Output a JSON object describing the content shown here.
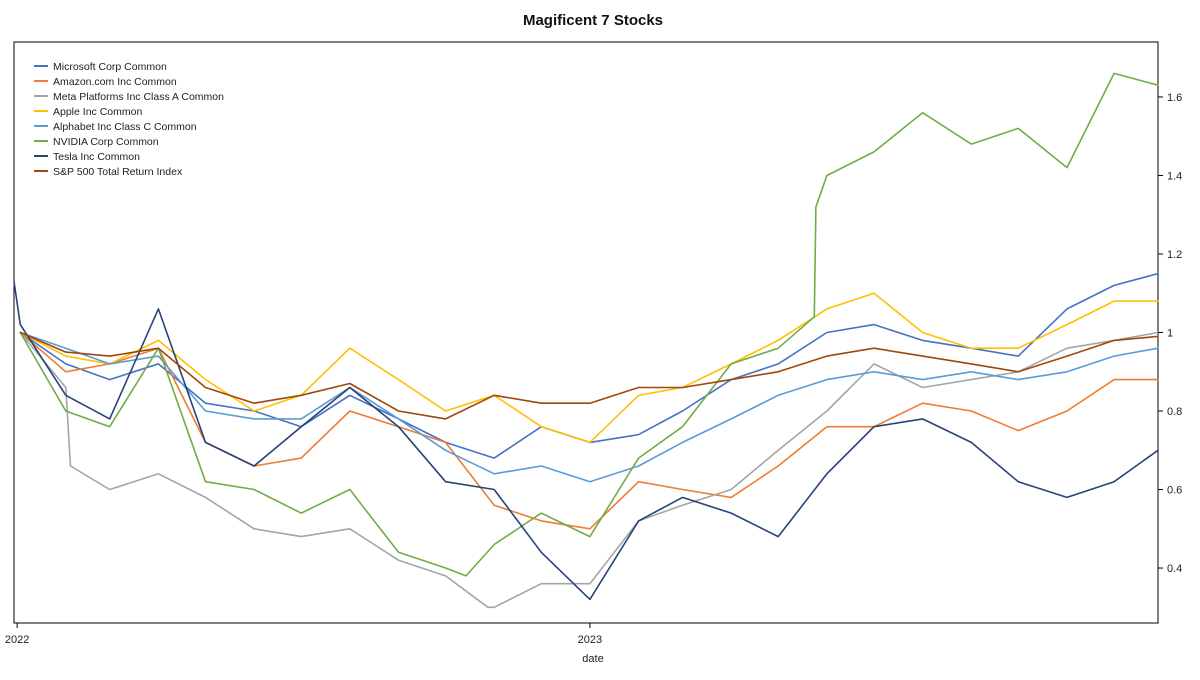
{
  "chart_data": {
    "type": "line",
    "title": "Magificent 7 Stocks",
    "xlabel": "date",
    "ylabel": "",
    "x_range": [
      "2021-12-30",
      "2023-12-29"
    ],
    "x_ticks": [
      {
        "date": "2022-01-01",
        "label": "2022"
      },
      {
        "date": "2023-01-01",
        "label": "2023"
      }
    ],
    "y_axis_side": "right",
    "ylim": [
      0.26,
      1.74
    ],
    "y_ticks": [
      0.4,
      0.6,
      0.8,
      1.0,
      1.2,
      1.4,
      1.6
    ],
    "y_tick_labels": [
      "0.4",
      "0.6",
      "0.8",
      "1",
      "1.2",
      "1.4",
      "1.6"
    ],
    "grid": false,
    "legend_position": "top-left",
    "series": [
      {
        "name": "Microsoft Corp Common",
        "color": "#4472c4",
        "points": [
          [
            "2022-01-03",
            1.0
          ],
          [
            "2022-02-01",
            0.92
          ],
          [
            "2022-03-01",
            0.88
          ],
          [
            "2022-04-01",
            0.92
          ],
          [
            "2022-05-01",
            0.82
          ],
          [
            "2022-06-01",
            0.8
          ],
          [
            "2022-07-01",
            0.76
          ],
          [
            "2022-08-01",
            0.84
          ],
          [
            "2022-09-01",
            0.78
          ],
          [
            "2022-10-01",
            0.72
          ],
          [
            "2022-11-01",
            0.68
          ],
          [
            "2022-12-01",
            0.76
          ],
          [
            "2023-01-01",
            0.72
          ],
          [
            "2023-02-01",
            0.74
          ],
          [
            "2023-03-01",
            0.8
          ],
          [
            "2023-04-01",
            0.88
          ],
          [
            "2023-05-01",
            0.92
          ],
          [
            "2023-06-01",
            1.0
          ],
          [
            "2023-07-01",
            1.02
          ],
          [
            "2023-08-01",
            0.98
          ],
          [
            "2023-09-01",
            0.96
          ],
          [
            "2023-10-01",
            0.94
          ],
          [
            "2023-11-01",
            1.06
          ],
          [
            "2023-12-01",
            1.12
          ],
          [
            "2023-12-29",
            1.15
          ]
        ]
      },
      {
        "name": "Amazon.com Inc Common",
        "color": "#ed7d31",
        "points": [
          [
            "2022-01-03",
            1.0
          ],
          [
            "2022-02-01",
            0.9
          ],
          [
            "2022-03-01",
            0.92
          ],
          [
            "2022-04-01",
            0.96
          ],
          [
            "2022-05-01",
            0.72
          ],
          [
            "2022-06-01",
            0.66
          ],
          [
            "2022-07-01",
            0.68
          ],
          [
            "2022-08-01",
            0.8
          ],
          [
            "2022-09-01",
            0.76
          ],
          [
            "2022-10-01",
            0.72
          ],
          [
            "2022-11-01",
            0.56
          ],
          [
            "2022-12-01",
            0.52
          ],
          [
            "2023-01-01",
            0.5
          ],
          [
            "2023-02-01",
            0.62
          ],
          [
            "2023-03-01",
            0.6
          ],
          [
            "2023-04-01",
            0.58
          ],
          [
            "2023-05-01",
            0.66
          ],
          [
            "2023-06-01",
            0.76
          ],
          [
            "2023-07-01",
            0.76
          ],
          [
            "2023-08-01",
            0.82
          ],
          [
            "2023-09-01",
            0.8
          ],
          [
            "2023-10-01",
            0.75
          ],
          [
            "2023-11-01",
            0.8
          ],
          [
            "2023-12-01",
            0.88
          ],
          [
            "2023-12-29",
            0.88
          ]
        ]
      },
      {
        "name": "Meta Platforms Inc Class A Common",
        "color": "#a5a5a5",
        "points": [
          [
            "2022-01-03",
            1.0
          ],
          [
            "2022-02-01",
            0.86
          ],
          [
            "2022-02-04",
            0.66
          ],
          [
            "2022-03-01",
            0.6
          ],
          [
            "2022-04-01",
            0.64
          ],
          [
            "2022-05-01",
            0.58
          ],
          [
            "2022-06-01",
            0.5
          ],
          [
            "2022-07-01",
            0.48
          ],
          [
            "2022-08-01",
            0.5
          ],
          [
            "2022-09-01",
            0.42
          ],
          [
            "2022-10-01",
            0.38
          ],
          [
            "2022-10-28",
            0.3
          ],
          [
            "2022-11-01",
            0.3
          ],
          [
            "2022-12-01",
            0.36
          ],
          [
            "2023-01-01",
            0.36
          ],
          [
            "2023-02-01",
            0.52
          ],
          [
            "2023-03-01",
            0.56
          ],
          [
            "2023-04-01",
            0.6
          ],
          [
            "2023-05-01",
            0.7
          ],
          [
            "2023-06-01",
            0.8
          ],
          [
            "2023-07-01",
            0.92
          ],
          [
            "2023-08-01",
            0.86
          ],
          [
            "2023-09-01",
            0.88
          ],
          [
            "2023-10-01",
            0.9
          ],
          [
            "2023-11-01",
            0.96
          ],
          [
            "2023-12-01",
            0.98
          ],
          [
            "2023-12-29",
            1.0
          ]
        ]
      },
      {
        "name": "Apple Inc Common",
        "color": "#ffc000",
        "points": [
          [
            "2022-01-03",
            1.0
          ],
          [
            "2022-02-01",
            0.94
          ],
          [
            "2022-03-01",
            0.92
          ],
          [
            "2022-04-01",
            0.98
          ],
          [
            "2022-05-01",
            0.88
          ],
          [
            "2022-06-01",
            0.8
          ],
          [
            "2022-07-01",
            0.84
          ],
          [
            "2022-08-01",
            0.96
          ],
          [
            "2022-09-01",
            0.88
          ],
          [
            "2022-10-01",
            0.8
          ],
          [
            "2022-11-01",
            0.84
          ],
          [
            "2022-12-01",
            0.76
          ],
          [
            "2023-01-01",
            0.72
          ],
          [
            "2023-02-01",
            0.84
          ],
          [
            "2023-03-01",
            0.86
          ],
          [
            "2023-04-01",
            0.92
          ],
          [
            "2023-05-01",
            0.98
          ],
          [
            "2023-06-01",
            1.06
          ],
          [
            "2023-07-01",
            1.1
          ],
          [
            "2023-08-01",
            1.0
          ],
          [
            "2023-09-01",
            0.96
          ],
          [
            "2023-10-01",
            0.96
          ],
          [
            "2023-11-01",
            1.02
          ],
          [
            "2023-12-01",
            1.08
          ],
          [
            "2023-12-29",
            1.08
          ]
        ]
      },
      {
        "name": "Alphabet Inc Class C Common",
        "color": "#5b9bd5",
        "points": [
          [
            "2022-01-03",
            1.0
          ],
          [
            "2022-02-01",
            0.96
          ],
          [
            "2022-03-01",
            0.92
          ],
          [
            "2022-04-01",
            0.94
          ],
          [
            "2022-05-01",
            0.8
          ],
          [
            "2022-06-01",
            0.78
          ],
          [
            "2022-07-01",
            0.78
          ],
          [
            "2022-08-01",
            0.86
          ],
          [
            "2022-09-01",
            0.78
          ],
          [
            "2022-10-01",
            0.7
          ],
          [
            "2022-11-01",
            0.64
          ],
          [
            "2022-12-01",
            0.66
          ],
          [
            "2023-01-01",
            0.62
          ],
          [
            "2023-02-01",
            0.66
          ],
          [
            "2023-03-01",
            0.72
          ],
          [
            "2023-04-01",
            0.78
          ],
          [
            "2023-05-01",
            0.84
          ],
          [
            "2023-06-01",
            0.88
          ],
          [
            "2023-07-01",
            0.9
          ],
          [
            "2023-08-01",
            0.88
          ],
          [
            "2023-09-01",
            0.9
          ],
          [
            "2023-10-01",
            0.88
          ],
          [
            "2023-11-01",
            0.9
          ],
          [
            "2023-12-01",
            0.94
          ],
          [
            "2023-12-29",
            0.96
          ]
        ]
      },
      {
        "name": "NVIDIA Corp Common",
        "color": "#70ad47",
        "points": [
          [
            "2022-01-03",
            1.0
          ],
          [
            "2022-02-01",
            0.8
          ],
          [
            "2022-03-01",
            0.76
          ],
          [
            "2022-04-01",
            0.96
          ],
          [
            "2022-05-01",
            0.62
          ],
          [
            "2022-06-01",
            0.6
          ],
          [
            "2022-07-01",
            0.54
          ],
          [
            "2022-08-01",
            0.6
          ],
          [
            "2022-09-01",
            0.44
          ],
          [
            "2022-10-01",
            0.4
          ],
          [
            "2022-10-14",
            0.38
          ],
          [
            "2022-11-01",
            0.46
          ],
          [
            "2022-12-01",
            0.54
          ],
          [
            "2023-01-01",
            0.48
          ],
          [
            "2023-02-01",
            0.68
          ],
          [
            "2023-03-01",
            0.76
          ],
          [
            "2023-04-01",
            0.92
          ],
          [
            "2023-05-01",
            0.96
          ],
          [
            "2023-05-24",
            1.04
          ],
          [
            "2023-05-25",
            1.32
          ],
          [
            "2023-06-01",
            1.4
          ],
          [
            "2023-07-01",
            1.46
          ],
          [
            "2023-08-01",
            1.56
          ],
          [
            "2023-09-01",
            1.48
          ],
          [
            "2023-10-01",
            1.52
          ],
          [
            "2023-11-01",
            1.42
          ],
          [
            "2023-12-01",
            1.66
          ],
          [
            "2023-12-29",
            1.63
          ]
        ]
      },
      {
        "name": "Tesla Inc Common",
        "color": "#264478",
        "points": [
          [
            "2021-12-30",
            1.13
          ],
          [
            "2022-01-03",
            1.02
          ],
          [
            "2022-02-01",
            0.84
          ],
          [
            "2022-03-01",
            0.78
          ],
          [
            "2022-04-01",
            1.06
          ],
          [
            "2022-05-01",
            0.72
          ],
          [
            "2022-06-01",
            0.66
          ],
          [
            "2022-07-01",
            0.76
          ],
          [
            "2022-08-01",
            0.86
          ],
          [
            "2022-09-01",
            0.76
          ],
          [
            "2022-10-01",
            0.62
          ],
          [
            "2022-11-01",
            0.6
          ],
          [
            "2022-12-01",
            0.44
          ],
          [
            "2023-01-01",
            0.32
          ],
          [
            "2023-02-01",
            0.52
          ],
          [
            "2023-03-01",
            0.58
          ],
          [
            "2023-04-01",
            0.54
          ],
          [
            "2023-05-01",
            0.48
          ],
          [
            "2023-06-01",
            0.64
          ],
          [
            "2023-07-01",
            0.76
          ],
          [
            "2023-08-01",
            0.78
          ],
          [
            "2023-09-01",
            0.72
          ],
          [
            "2023-10-01",
            0.62
          ],
          [
            "2023-11-01",
            0.58
          ],
          [
            "2023-12-01",
            0.62
          ],
          [
            "2023-12-29",
            0.7
          ]
        ]
      },
      {
        "name": "S&P 500 Total Return Index",
        "color": "#9e480e",
        "points": [
          [
            "2022-01-03",
            1.0
          ],
          [
            "2022-02-01",
            0.95
          ],
          [
            "2022-03-01",
            0.94
          ],
          [
            "2022-04-01",
            0.96
          ],
          [
            "2022-05-01",
            0.86
          ],
          [
            "2022-06-01",
            0.82
          ],
          [
            "2022-07-01",
            0.84
          ],
          [
            "2022-08-01",
            0.87
          ],
          [
            "2022-09-01",
            0.8
          ],
          [
            "2022-10-01",
            0.78
          ],
          [
            "2022-11-01",
            0.84
          ],
          [
            "2022-12-01",
            0.82
          ],
          [
            "2023-01-01",
            0.82
          ],
          [
            "2023-02-01",
            0.86
          ],
          [
            "2023-03-01",
            0.86
          ],
          [
            "2023-04-01",
            0.88
          ],
          [
            "2023-05-01",
            0.9
          ],
          [
            "2023-06-01",
            0.94
          ],
          [
            "2023-07-01",
            0.96
          ],
          [
            "2023-08-01",
            0.94
          ],
          [
            "2023-09-01",
            0.92
          ],
          [
            "2023-10-01",
            0.9
          ],
          [
            "2023-11-01",
            0.94
          ],
          [
            "2023-12-01",
            0.98
          ],
          [
            "2023-12-29",
            0.99
          ]
        ]
      }
    ]
  }
}
